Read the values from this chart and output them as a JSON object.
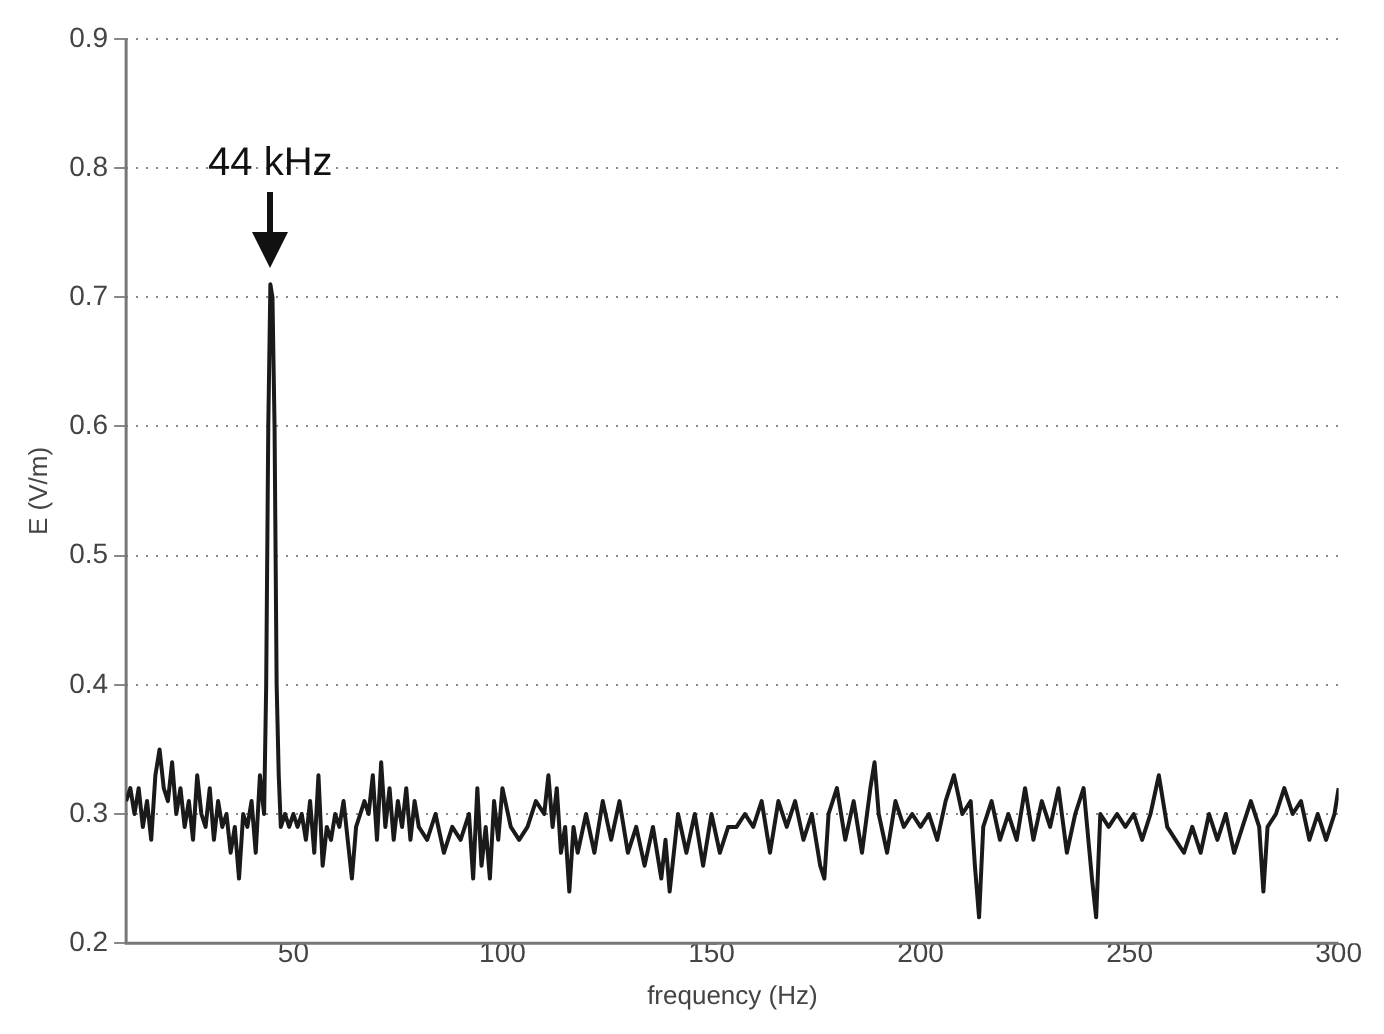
{
  "chart_data": {
    "type": "line",
    "xlabel": "frequency (Hz)",
    "ylabel": "E (V/m)",
    "xlim": [
      10,
      300
    ],
    "xticks": [
      50,
      100,
      150,
      200,
      250,
      300
    ],
    "ylim": [
      0.2,
      0.9
    ],
    "yticks": [
      0.2,
      0.3,
      0.4,
      0.5,
      0.6,
      0.7,
      0.8,
      0.9
    ],
    "grid": "y",
    "line_style": "solid",
    "marker": "none",
    "annotations": [
      {
        "text": "44 kHz",
        "x": 44.5,
        "y": 0.71
      }
    ],
    "series": [
      {
        "color": "#1a1a1a",
        "x": [
          10,
          11,
          12,
          13,
          14,
          15,
          16,
          17,
          18,
          19,
          20,
          21,
          22,
          23,
          24,
          25,
          26,
          27,
          28,
          29,
          30,
          31,
          32,
          33,
          34,
          35,
          36,
          37,
          38,
          39,
          40,
          41,
          42,
          43,
          43.5,
          44,
          44.5,
          45,
          45.5,
          46,
          46.5,
          47,
          48,
          49,
          50,
          51,
          52,
          53,
          54,
          55,
          56,
          57,
          58,
          59,
          60,
          61,
          62,
          63,
          64,
          65,
          66,
          67,
          68,
          69,
          70,
          71,
          72,
          73,
          74,
          75,
          76,
          77,
          78,
          79,
          80,
          82,
          84,
          86,
          88,
          90,
          92,
          93,
          94,
          95,
          96,
          97,
          98,
          99,
          100,
          102,
          104,
          106,
          108,
          110,
          111,
          112,
          113,
          114,
          115,
          116,
          117,
          118,
          120,
          122,
          124,
          126,
          128,
          130,
          132,
          134,
          136,
          138,
          139,
          140,
          142,
          144,
          146,
          148,
          150,
          152,
          154,
          156,
          158,
          160,
          162,
          164,
          166,
          168,
          170,
          172,
          174,
          176,
          177,
          178,
          180,
          182,
          184,
          186,
          188,
          189,
          190,
          192,
          194,
          196,
          198,
          200,
          202,
          204,
          206,
          208,
          210,
          212,
          213,
          214,
          215,
          217,
          219,
          221,
          223,
          225,
          227,
          229,
          231,
          233,
          235,
          237,
          239,
          241,
          242,
          243,
          245,
          247,
          249,
          251,
          253,
          255,
          257,
          259,
          261,
          263,
          265,
          267,
          269,
          271,
          273,
          275,
          277,
          279,
          281,
          282,
          283,
          285,
          287,
          289,
          291,
          293,
          295,
          297,
          299,
          300
        ],
        "values": [
          0.31,
          0.32,
          0.3,
          0.32,
          0.29,
          0.31,
          0.28,
          0.33,
          0.35,
          0.32,
          0.31,
          0.34,
          0.3,
          0.32,
          0.29,
          0.31,
          0.28,
          0.33,
          0.3,
          0.29,
          0.32,
          0.28,
          0.31,
          0.29,
          0.3,
          0.27,
          0.29,
          0.25,
          0.3,
          0.29,
          0.31,
          0.27,
          0.33,
          0.3,
          0.4,
          0.6,
          0.71,
          0.7,
          0.6,
          0.4,
          0.33,
          0.29,
          0.3,
          0.29,
          0.3,
          0.29,
          0.3,
          0.28,
          0.31,
          0.27,
          0.33,
          0.26,
          0.29,
          0.28,
          0.3,
          0.29,
          0.31,
          0.28,
          0.25,
          0.29,
          0.3,
          0.31,
          0.3,
          0.33,
          0.28,
          0.34,
          0.29,
          0.32,
          0.28,
          0.31,
          0.29,
          0.32,
          0.28,
          0.31,
          0.29,
          0.28,
          0.3,
          0.27,
          0.29,
          0.28,
          0.3,
          0.25,
          0.32,
          0.26,
          0.29,
          0.25,
          0.31,
          0.28,
          0.32,
          0.29,
          0.28,
          0.29,
          0.31,
          0.3,
          0.33,
          0.29,
          0.32,
          0.27,
          0.29,
          0.24,
          0.29,
          0.27,
          0.3,
          0.27,
          0.31,
          0.28,
          0.31,
          0.27,
          0.29,
          0.26,
          0.29,
          0.25,
          0.28,
          0.24,
          0.3,
          0.27,
          0.3,
          0.26,
          0.3,
          0.27,
          0.29,
          0.29,
          0.3,
          0.29,
          0.31,
          0.27,
          0.31,
          0.29,
          0.31,
          0.28,
          0.3,
          0.26,
          0.25,
          0.3,
          0.32,
          0.28,
          0.31,
          0.27,
          0.32,
          0.34,
          0.3,
          0.27,
          0.31,
          0.29,
          0.3,
          0.29,
          0.3,
          0.28,
          0.31,
          0.33,
          0.3,
          0.31,
          0.26,
          0.22,
          0.29,
          0.31,
          0.28,
          0.3,
          0.28,
          0.32,
          0.28,
          0.31,
          0.29,
          0.32,
          0.27,
          0.3,
          0.32,
          0.25,
          0.22,
          0.3,
          0.29,
          0.3,
          0.29,
          0.3,
          0.28,
          0.3,
          0.33,
          0.29,
          0.28,
          0.27,
          0.29,
          0.27,
          0.3,
          0.28,
          0.3,
          0.27,
          0.29,
          0.31,
          0.29,
          0.24,
          0.29,
          0.3,
          0.32,
          0.3,
          0.31,
          0.28,
          0.3,
          0.28,
          0.3,
          0.32
        ]
      }
    ]
  }
}
